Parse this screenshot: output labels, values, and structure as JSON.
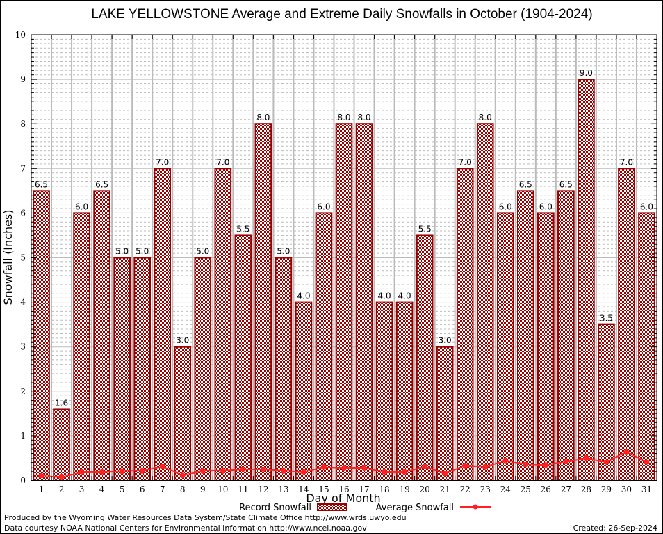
{
  "chart_data": {
    "type": "bar",
    "title": "LAKE YELLOWSTONE Average and Extreme Daily Snowfalls in October (1904-2024)",
    "xlabel": "Day of Month",
    "ylabel": "Snowfall (Inches)",
    "ylim": [
      0,
      10
    ],
    "yticks": [
      "0",
      "1",
      "2",
      "3",
      "4",
      "5",
      "6",
      "7",
      "8",
      "9",
      "10"
    ],
    "grid": true,
    "legend_position": "bottom-center",
    "categories": [
      "1",
      "2",
      "3",
      "4",
      "5",
      "6",
      "7",
      "8",
      "9",
      "10",
      "11",
      "12",
      "13",
      "14",
      "15",
      "16",
      "17",
      "18",
      "19",
      "20",
      "21",
      "22",
      "23",
      "24",
      "25",
      "26",
      "27",
      "28",
      "29",
      "30",
      "31"
    ],
    "series": [
      {
        "name": "Record Snowfall",
        "type": "bar",
        "color": "#990000",
        "values": [
          6.5,
          1.6,
          6.0,
          6.5,
          5.0,
          5.0,
          7.0,
          3.0,
          5.0,
          7.0,
          5.5,
          8.0,
          5.0,
          4.0,
          6.0,
          8.0,
          8.0,
          4.0,
          4.0,
          5.5,
          3.0,
          7.0,
          8.0,
          6.0,
          6.5,
          6.0,
          6.5,
          9.0,
          3.5,
          7.0,
          6.0
        ],
        "labels": [
          "6.5",
          "1.6",
          "6.0",
          "6.5",
          "5.0",
          "5.0",
          "7.0",
          "3.0",
          "5.0",
          "7.0",
          "5.5",
          "8.0",
          "5.0",
          "4.0",
          "6.0",
          "8.0",
          "8.0",
          "4.0",
          "4.0",
          "5.5",
          "3.0",
          "7.0",
          "8.0",
          "6.0",
          "6.5",
          "6.0",
          "6.5",
          "9.0",
          "3.5",
          "7.0",
          "6.0"
        ]
      },
      {
        "name": "Average Snowfall",
        "type": "line",
        "color": "#ff2020",
        "values": [
          0.11,
          0.08,
          0.19,
          0.19,
          0.21,
          0.22,
          0.31,
          0.12,
          0.22,
          0.22,
          0.25,
          0.25,
          0.22,
          0.19,
          0.3,
          0.28,
          0.28,
          0.19,
          0.19,
          0.31,
          0.16,
          0.33,
          0.3,
          0.44,
          0.36,
          0.34,
          0.42,
          0.5,
          0.41,
          0.64,
          0.41
        ]
      }
    ]
  },
  "footer": {
    "produced_by": "Produced by the Wyoming Water Resources Data System/State Climate Office http://www.wrds.uwyo.edu",
    "data_courtesy": "Data courtesy NOAA National Centers for Environmental Information http://www.ncei.noaa.gov",
    "created": "Created: 26-Sep-2024"
  }
}
